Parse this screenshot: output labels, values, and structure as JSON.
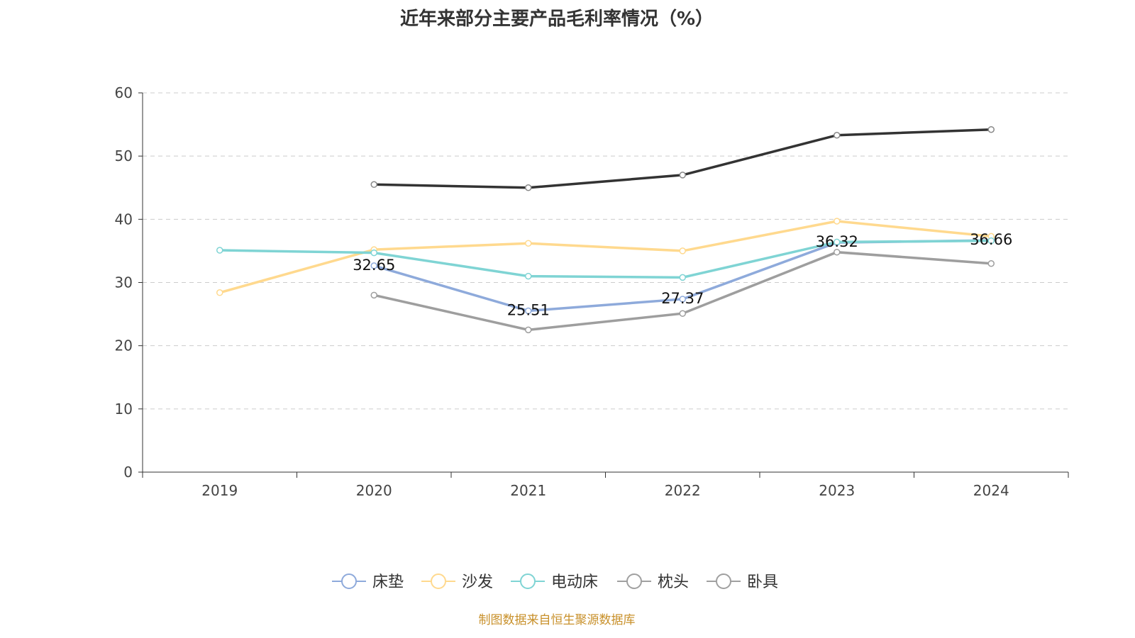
{
  "chart_data": {
    "type": "line",
    "title": "近年来部分主要产品毛利率情况（%）",
    "source": "制图数据来自恒生聚源数据库",
    "categories": [
      "2019",
      "2020",
      "2021",
      "2022",
      "2023",
      "2024"
    ],
    "ylim": [
      0,
      60
    ],
    "yticks": [
      "0",
      "10",
      "20",
      "30",
      "40",
      "50",
      "60"
    ],
    "grid": true,
    "legend_position": "bottom",
    "series": [
      {
        "name": "床垫",
        "color": "#8eaadb",
        "legend_color": "#8eaadb",
        "values": [
          null,
          32.65,
          25.51,
          27.37,
          36.32,
          36.66
        ],
        "labels": [
          null,
          "32.65",
          "25.51",
          "27.37",
          "36.32",
          "36.66"
        ]
      },
      {
        "name": "沙发",
        "color": "#ffd98e",
        "legend_color": "#ffd98e",
        "values": [
          28.4,
          35.2,
          36.2,
          35.0,
          39.7,
          37.3
        ]
      },
      {
        "name": "电动床",
        "color": "#7fd4d4",
        "legend_color": "#7fd4d4",
        "values": [
          35.1,
          34.7,
          31.0,
          30.8,
          36.4,
          36.6
        ]
      },
      {
        "name": "枕头",
        "color": "#333333",
        "legend_color": "#a0a0a0",
        "values": [
          null,
          45.5,
          45.0,
          47.0,
          53.3,
          54.2
        ]
      },
      {
        "name": "卧具",
        "color": "#9e9e9e",
        "legend_color": "#a0a0a0",
        "values": [
          null,
          28.0,
          22.5,
          25.1,
          34.8,
          33.0
        ]
      }
    ]
  }
}
